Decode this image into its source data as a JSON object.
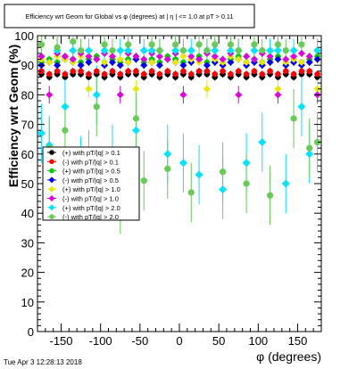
{
  "title": "Efficiency wrt Geom for Global vs φ (degrees) at | η | <= 1.0 at pT > 0.11",
  "timestamp": "Tue Apr  3 12:28:13 2018",
  "chart_data": {
    "type": "scatter",
    "title": "Efficiency wrt Geom for Global vs φ (degrees) at | η | <= 1.0 at pT > 0.11",
    "xlabel": "φ (degrees)",
    "ylabel": "Efficiency wrt Geom (%)",
    "xlim": [
      -180,
      180
    ],
    "ylim": [
      0,
      100
    ],
    "x_ticks": [
      -150,
      -100,
      -50,
      0,
      50,
      100,
      150
    ],
    "y_ticks": [
      0,
      10,
      20,
      30,
      40,
      50,
      60,
      70,
      80,
      90,
      100
    ],
    "grid": false,
    "legend_position": "left-center",
    "series": [
      {
        "name": "(+) with pT/|q| > 0.1",
        "color": "#000000",
        "marker": "circle",
        "x": [
          -175,
          -165,
          -155,
          -145,
          -135,
          -125,
          -115,
          -105,
          -95,
          -85,
          -75,
          -65,
          -55,
          -45,
          -35,
          -25,
          -15,
          -5,
          5,
          15,
          25,
          35,
          45,
          55,
          65,
          75,
          85,
          95,
          105,
          115,
          125,
          135,
          145,
          155,
          165,
          175
        ],
        "y": [
          87,
          86,
          87,
          86,
          87,
          87,
          86,
          87,
          86,
          87,
          86,
          87,
          87,
          86,
          87,
          86,
          87,
          86,
          87,
          86,
          87,
          87,
          86,
          87,
          86,
          87,
          86,
          87,
          86,
          87,
          86,
          87,
          86,
          87,
          87,
          86
        ]
      },
      {
        "name": "(-) with pT/|q| > 0.1",
        "color": "#ff0000",
        "marker": "circle",
        "x": [
          -175,
          -165,
          -155,
          -145,
          -135,
          -125,
          -115,
          -105,
          -95,
          -85,
          -75,
          -65,
          -55,
          -45,
          -35,
          -25,
          -15,
          -5,
          5,
          15,
          25,
          35,
          45,
          55,
          65,
          75,
          85,
          95,
          105,
          115,
          125,
          135,
          145,
          155,
          165,
          175
        ],
        "y": [
          88,
          87,
          88,
          87,
          88,
          88,
          87,
          88,
          87,
          88,
          87,
          88,
          88,
          87,
          88,
          87,
          88,
          87,
          88,
          87,
          88,
          88,
          87,
          88,
          87,
          88,
          87,
          88,
          87,
          88,
          87,
          88,
          87,
          88,
          88,
          87
        ]
      },
      {
        "name": "(+) with pT/|q| > 0.5",
        "color": "#00cc00",
        "marker": "circle",
        "x": [
          -175,
          -165,
          -155,
          -145,
          -135,
          -125,
          -115,
          -105,
          -95,
          -85,
          -75,
          -65,
          -55,
          -45,
          -35,
          -25,
          -15,
          -5,
          5,
          15,
          25,
          35,
          45,
          55,
          65,
          75,
          85,
          95,
          105,
          115,
          125,
          135,
          145,
          155,
          165,
          175
        ],
        "y": [
          91,
          92,
          91,
          93,
          92,
          91,
          92,
          93,
          91,
          92,
          91,
          92,
          93,
          91,
          92,
          91,
          93,
          92,
          91,
          92,
          93,
          91,
          92,
          91,
          92,
          93,
          91,
          92,
          91,
          92,
          93,
          91,
          92,
          91,
          92,
          93
        ]
      },
      {
        "name": "(-) with pT/|q| > 0.5",
        "color": "#0000ff",
        "marker": "diamond",
        "x": [
          -175,
          -165,
          -155,
          -145,
          -135,
          -125,
          -115,
          -105,
          -95,
          -85,
          -75,
          -65,
          -55,
          -45,
          -35,
          -25,
          -15,
          -5,
          5,
          15,
          25,
          35,
          45,
          55,
          65,
          75,
          85,
          95,
          105,
          115,
          125,
          135,
          145,
          155,
          165,
          175
        ],
        "y": [
          90,
          91,
          90,
          92,
          91,
          90,
          91,
          92,
          90,
          91,
          90,
          91,
          92,
          90,
          91,
          90,
          92,
          91,
          90,
          91,
          92,
          90,
          91,
          90,
          91,
          92,
          90,
          91,
          90,
          91,
          92,
          90,
          91,
          90,
          91,
          92
        ]
      },
      {
        "name": "(+) with pT/|q| > 1.0",
        "color": "#e8e800",
        "marker": "diamond",
        "x": [
          -175,
          -165,
          -155,
          -145,
          -135,
          -125,
          -115,
          -105,
          -95,
          -85,
          -75,
          -65,
          -55,
          -45,
          -35,
          -25,
          -15,
          -5,
          5,
          15,
          25,
          35,
          45,
          55,
          65,
          75,
          85,
          95,
          105,
          115,
          125,
          135,
          145,
          155,
          165,
          175
        ],
        "y": [
          92,
          91,
          93,
          92,
          91,
          93,
          82,
          92,
          91,
          93,
          92,
          91,
          82,
          92,
          91,
          93,
          92,
          91,
          93,
          92,
          91,
          82,
          92,
          91,
          93,
          92,
          91,
          92,
          91,
          93,
          82,
          91,
          92,
          91,
          93,
          82
        ]
      },
      {
        "name": "(-) with pT/|q| > 1.0",
        "color": "#e000e0",
        "marker": "diamond",
        "x": [
          -175,
          -165,
          -155,
          -145,
          -135,
          -125,
          -115,
          -105,
          -95,
          -85,
          -75,
          -65,
          -55,
          -45,
          -35,
          -25,
          -15,
          -5,
          5,
          15,
          25,
          35,
          45,
          55,
          65,
          75,
          85,
          95,
          105,
          115,
          125,
          135,
          145,
          155,
          165,
          175
        ],
        "y": [
          93,
          80,
          94,
          93,
          92,
          94,
          93,
          92,
          94,
          93,
          80,
          94,
          93,
          92,
          94,
          93,
          92,
          94,
          80,
          93,
          92,
          94,
          93,
          92,
          94,
          80,
          93,
          92,
          94,
          93,
          80,
          92,
          93,
          94,
          93,
          80
        ]
      },
      {
        "name": "(+) with pT/|q| > 2.0",
        "color": "#00e5ff",
        "marker": "diamond",
        "x": [
          -175,
          -165,
          -155,
          -145,
          -135,
          -125,
          -115,
          -105,
          -95,
          -85,
          -75,
          -65,
          -55,
          -45,
          -35,
          -25,
          -15,
          -5,
          5,
          15,
          25,
          35,
          45,
          55,
          65,
          75,
          85,
          95,
          105,
          115,
          125,
          135,
          145,
          155,
          165,
          175
        ],
        "y": [
          67,
          63,
          95,
          76,
          95,
          56,
          95,
          80,
          95,
          60,
          95,
          95,
          68,
          95,
          95,
          95,
          60,
          95,
          57,
          95,
          53,
          95,
          95,
          48,
          95,
          95,
          57,
          95,
          64,
          95,
          95,
          50,
          95,
          76,
          60,
          95
        ]
      },
      {
        "name": "(-) with pT/|q| > 2.0",
        "color": "#66cc55",
        "marker": "circle",
        "x": [
          -175,
          -165,
          -155,
          -145,
          -135,
          -125,
          -115,
          -105,
          -95,
          -85,
          -75,
          -65,
          -55,
          -45,
          -35,
          -25,
          -15,
          -5,
          5,
          15,
          25,
          35,
          45,
          55,
          65,
          75,
          85,
          95,
          105,
          115,
          125,
          135,
          145,
          155,
          165,
          175
        ],
        "y": [
          97,
          62,
          96,
          68,
          98,
          95,
          58,
          76,
          97,
          95,
          43,
          97,
          72,
          51,
          97,
          95,
          55,
          97,
          95,
          47,
          97,
          95,
          97,
          54,
          97,
          95,
          50,
          97,
          95,
          46,
          97,
          95,
          72,
          97,
          62,
          64
        ]
      }
    ]
  }
}
